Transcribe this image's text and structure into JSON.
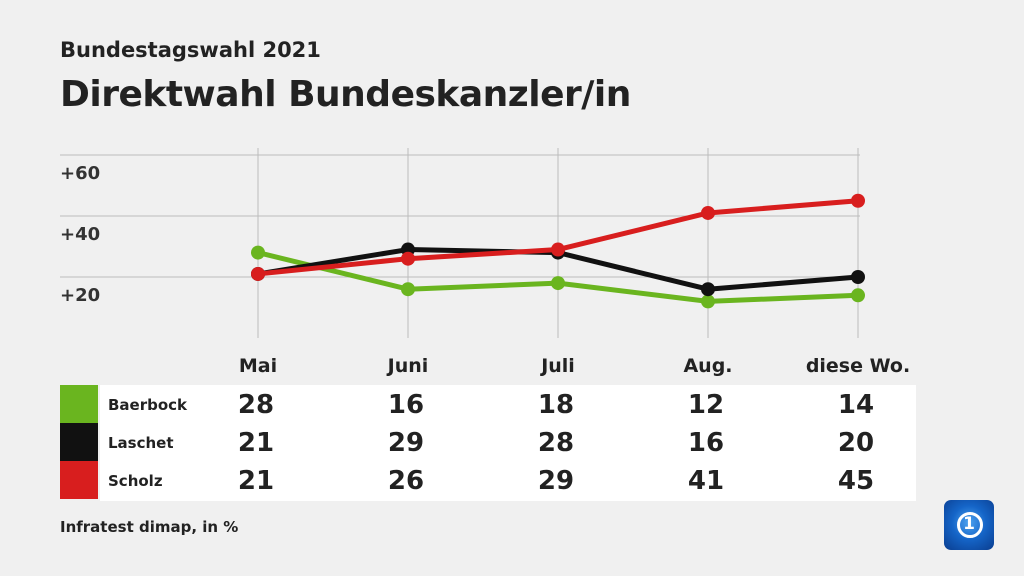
{
  "supertitle": "Bundestagswahl 2021",
  "title": "Direktwahl Bundeskanzler/in",
  "source": "Infratest dimap, in %",
  "chart_data": {
    "type": "line",
    "categories": [
      "Mai",
      "Juni",
      "Juli",
      "Aug.",
      "diese Wo."
    ],
    "ylim": [
      0,
      60
    ],
    "yticks": [
      20,
      40,
      60
    ],
    "ytick_labels": [
      "+20",
      "+40",
      "+60"
    ],
    "grid": true,
    "series": [
      {
        "name": "Baerbock",
        "color": "#6ab51f",
        "values": [
          28,
          16,
          18,
          12,
          14
        ]
      },
      {
        "name": "Laschet",
        "color": "#111111",
        "values": [
          21,
          29,
          28,
          16,
          20
        ]
      },
      {
        "name": "Scholz",
        "color": "#d81e1e",
        "values": [
          21,
          26,
          29,
          41,
          45
        ]
      }
    ]
  },
  "logo": {
    "text": "1",
    "icon": "ard-das-erste-logo"
  }
}
